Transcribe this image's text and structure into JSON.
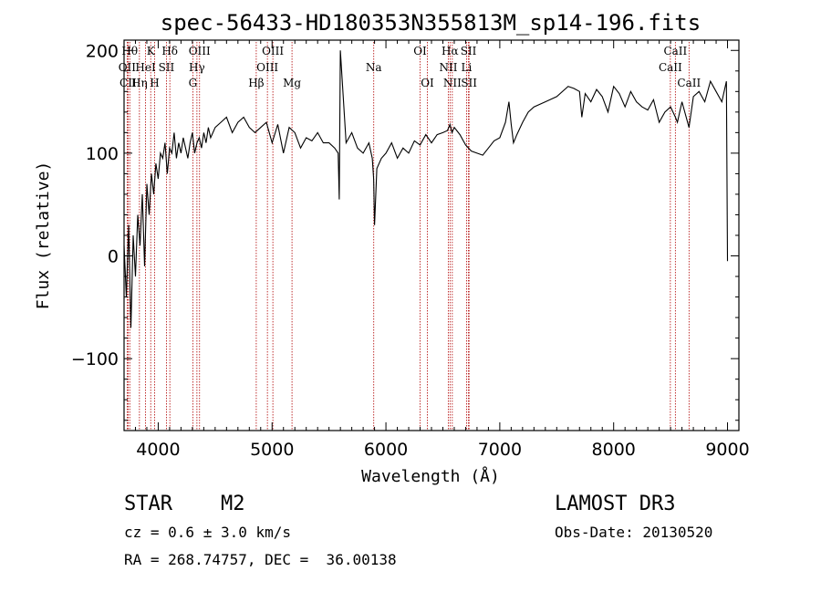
{
  "chart_data": {
    "type": "line",
    "title": "spec-56433-HD180353N355813M_sp14-196.fits",
    "xlabel": "Wavelength (Å)",
    "ylabel": "Flux (relative)",
    "xlim": [
      3700,
      9100
    ],
    "ylim": [
      -170,
      210
    ],
    "xticks": [
      4000,
      5000,
      6000,
      7000,
      8000,
      9000
    ],
    "yticks": [
      -100,
      0,
      100,
      200
    ],
    "x": [
      3700,
      3720,
      3740,
      3760,
      3780,
      3800,
      3820,
      3840,
      3860,
      3880,
      3900,
      3920,
      3940,
      3960,
      3980,
      4000,
      4020,
      4040,
      4060,
      4080,
      4100,
      4120,
      4140,
      4160,
      4180,
      4200,
      4220,
      4240,
      4260,
      4280,
      4300,
      4320,
      4340,
      4360,
      4380,
      4400,
      4420,
      4440,
      4460,
      4480,
      4500,
      4550,
      4600,
      4650,
      4700,
      4750,
      4800,
      4850,
      4900,
      4950,
      5000,
      5050,
      5100,
      5150,
      5200,
      5250,
      5300,
      5350,
      5400,
      5450,
      5500,
      5550,
      5580,
      5590,
      5600,
      5650,
      5700,
      5750,
      5800,
      5850,
      5880,
      5892,
      5900,
      5920,
      5960,
      6000,
      6050,
      6100,
      6150,
      6200,
      6250,
      6300,
      6350,
      6400,
      6450,
      6500,
      6540,
      6563,
      6580,
      6600,
      6650,
      6700,
      6750,
      6800,
      6850,
      6900,
      6950,
      7000,
      7050,
      7080,
      7100,
      7120,
      7150,
      7200,
      7250,
      7300,
      7400,
      7500,
      7600,
      7650,
      7700,
      7720,
      7750,
      7800,
      7850,
      7900,
      7950,
      8000,
      8050,
      8100,
      8150,
      8200,
      8250,
      8300,
      8350,
      8400,
      8450,
      8500,
      8542,
      8560,
      8600,
      8662,
      8700,
      8750,
      8800,
      8850,
      8900,
      8950,
      8990,
      9000
    ],
    "y": [
      10,
      -40,
      30,
      -70,
      20,
      -20,
      40,
      10,
      60,
      -10,
      70,
      40,
      80,
      60,
      90,
      75,
      100,
      95,
      110,
      80,
      105,
      100,
      120,
      95,
      110,
      100,
      115,
      105,
      95,
      110,
      120,
      100,
      110,
      115,
      105,
      120,
      110,
      125,
      115,
      120,
      125,
      130,
      135,
      120,
      130,
      135,
      125,
      120,
      125,
      130,
      110,
      128,
      100,
      125,
      120,
      105,
      115,
      112,
      120,
      110,
      110,
      105,
      100,
      55,
      200,
      110,
      120,
      105,
      100,
      110,
      95,
      75,
      30,
      85,
      95,
      100,
      110,
      95,
      105,
      100,
      112,
      108,
      118,
      110,
      118,
      120,
      122,
      128,
      120,
      125,
      118,
      108,
      102,
      100,
      98,
      105,
      112,
      115,
      130,
      150,
      128,
      110,
      118,
      130,
      140,
      145,
      150,
      155,
      165,
      163,
      160,
      135,
      158,
      150,
      162,
      155,
      140,
      165,
      158,
      145,
      160,
      150,
      145,
      142,
      152,
      130,
      140,
      145,
      135,
      130,
      150,
      125,
      155,
      160,
      150,
      170,
      160,
      150,
      170,
      -5
    ],
    "lines_top": [
      {
        "wl": 3750,
        "label": "Hθ"
      },
      {
        "wl": 3934,
        "label": "K"
      },
      {
        "wl": 4102,
        "label": "Hδ"
      },
      {
        "wl": 4363,
        "label": "OIII"
      },
      {
        "wl": 5007,
        "label": "OIII"
      },
      {
        "wl": 6300,
        "label": "OI"
      },
      {
        "wl": 6563,
        "label": "Hα"
      },
      {
        "wl": 6725,
        "label": "SII"
      },
      {
        "wl": 8542,
        "label": "CaII"
      }
    ],
    "lines_mid": [
      {
        "wl": 3727,
        "label": "OII"
      },
      {
        "wl": 3889,
        "label": "HeI"
      },
      {
        "wl": 4072,
        "label": "SII"
      },
      {
        "wl": 4340,
        "label": "Hγ"
      },
      {
        "wl": 4959,
        "label": "OIII"
      },
      {
        "wl": 5893,
        "label": "Na"
      },
      {
        "wl": 6548,
        "label": "NII"
      },
      {
        "wl": 6708,
        "label": "Li"
      },
      {
        "wl": 8498,
        "label": "CaII"
      }
    ],
    "lines_bot": [
      {
        "wl": 3735,
        "label": "CII"
      },
      {
        "wl": 3835,
        "label": "Hη"
      },
      {
        "wl": 3968,
        "label": "H"
      },
      {
        "wl": 4304,
        "label": "G"
      },
      {
        "wl": 4861,
        "label": "Hβ"
      },
      {
        "wl": 5175,
        "label": "Mg"
      },
      {
        "wl": 6364,
        "label": "OI"
      },
      {
        "wl": 6583,
        "label": "NII"
      },
      {
        "wl": 6730,
        "label": "SII"
      },
      {
        "wl": 8662,
        "label": "CaII"
      }
    ],
    "colors": {
      "spectrum": "#000000",
      "line_markers": "#b00000"
    }
  },
  "info": {
    "object_class": "STAR",
    "subclass": "M2",
    "survey": "LAMOST DR3",
    "cz": "cz = 0.6 ± 3.0 km/s",
    "obs_date": "Obs-Date: 20130520",
    "coords": "RA = 268.74757, DEC =  36.00138"
  }
}
